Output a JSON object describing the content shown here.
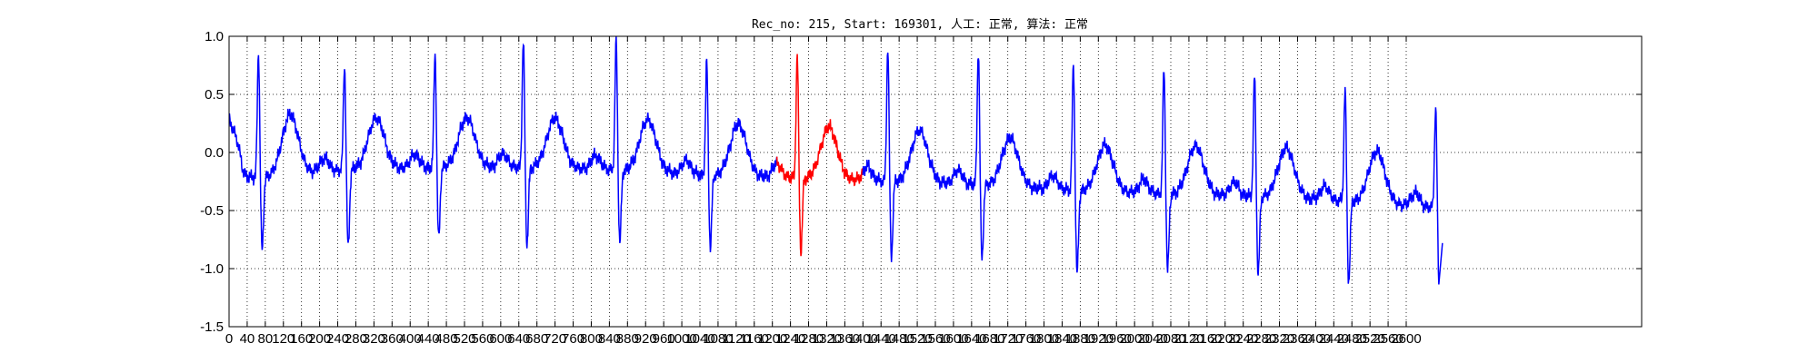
{
  "chart_data": {
    "type": "line",
    "title": "Rec_no: 215, Start: 169301, 人工: 正常, 算法: 正常",
    "xlabel": "",
    "ylabel": "",
    "xlim": [
      0,
      3120
    ],
    "ylim": [
      -1.5,
      1.0
    ],
    "grid": true,
    "y_ticks": [
      1.0,
      0.5,
      0.0,
      -0.5,
      -1.0,
      -1.5
    ],
    "y_tick_labels": [
      "1.0",
      "0.5",
      "0.0",
      "-0.5",
      "-1.0",
      "-1.5"
    ],
    "x_ticks": [
      0,
      40,
      80,
      120,
      160,
      200,
      240,
      280,
      320,
      360,
      400,
      440,
      480,
      520,
      560,
      600,
      640,
      680,
      720,
      760,
      800,
      840,
      880,
      920,
      960,
      1000,
      1040,
      1080,
      1120,
      1160,
      1200,
      1240,
      1280,
      1320,
      1360,
      1400,
      1440,
      1480,
      1520,
      1560,
      1600,
      1640,
      1680,
      1720,
      1760,
      1800,
      1840,
      1880,
      1920,
      1960,
      2000,
      2040,
      2080,
      2120,
      2160,
      2200,
      2240,
      2280,
      2320,
      2360,
      2400,
      2440,
      2480,
      2520,
      2560,
      2600
    ],
    "series": [
      {
        "color": "#0000ff",
        "beats": [
          {
            "r": 65,
            "r_amp": 0.88,
            "s_amp": -0.85,
            "t_amp": 0.52,
            "base": -0.22
          },
          {
            "r": 255,
            "r_amp": 0.77,
            "s_amp": -0.82,
            "t_amp": 0.44,
            "base": -0.15
          },
          {
            "r": 455,
            "r_amp": 0.87,
            "s_amp": -0.75,
            "t_amp": 0.43,
            "base": -0.13
          },
          {
            "r": 650,
            "r_amp": 0.98,
            "s_amp": -0.8,
            "t_amp": 0.43,
            "base": -0.13
          },
          {
            "r": 855,
            "r_amp": 0.98,
            "s_amp": -0.78,
            "t_amp": 0.45,
            "base": -0.15
          },
          {
            "r": 1055,
            "r_amp": 0.8,
            "s_amp": -0.82,
            "t_amp": 0.45,
            "base": -0.2
          },
          {
            "r": 1455,
            "r_amp": 0.92,
            "s_amp": -0.9,
            "t_amp": 0.45,
            "base": -0.25
          },
          {
            "r": 1655,
            "r_amp": 0.9,
            "s_amp": -0.92,
            "t_amp": 0.42,
            "base": -0.28
          },
          {
            "r": 1865,
            "r_amp": 0.78,
            "s_amp": -1.05,
            "t_amp": 0.4,
            "base": -0.33
          },
          {
            "r": 2065,
            "r_amp": 0.73,
            "s_amp": -1.02,
            "t_amp": 0.42,
            "base": -0.36
          },
          {
            "r": 2265,
            "r_amp": 0.68,
            "s_amp": -1.05,
            "t_amp": 0.43,
            "base": -0.38
          },
          {
            "r": 2465,
            "r_amp": 0.56,
            "s_amp": -1.12,
            "t_amp": 0.45,
            "base": -0.42
          },
          {
            "r": 2665,
            "r_amp": 0.4,
            "s_amp": -1.18,
            "t_amp": 0.0,
            "base": -0.48
          }
        ]
      },
      {
        "color": "#ff0000",
        "x_range": [
          1210,
          1400
        ],
        "beats": [
          {
            "r": 1255,
            "r_amp": 0.85,
            "s_amp": -0.86,
            "t_amp": 0.45,
            "base": -0.22
          }
        ]
      }
    ],
    "start_value": 0.28,
    "end_x": 2680,
    "end_value": -0.78
  }
}
